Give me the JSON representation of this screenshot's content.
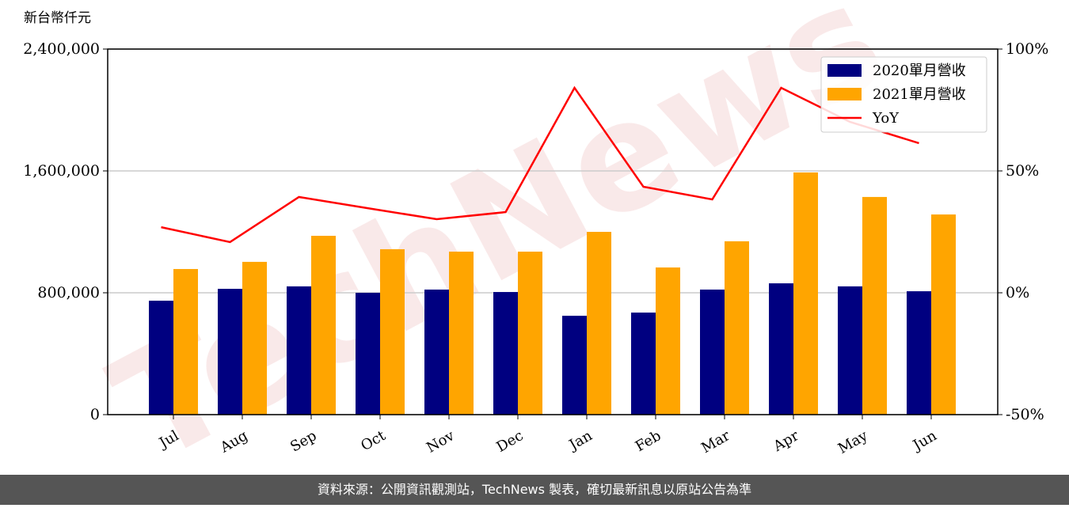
{
  "chart_data": {
    "type": "bar_line",
    "y_label": "新台幣仟元",
    "watermark": "TechNews",
    "footer": "資料來源：公開資訊觀測站，TechNews 製表，確切最新訊息以原站公告為準",
    "categories": [
      "Jul",
      "Aug",
      "Sep",
      "Oct",
      "Nov",
      "Dec",
      "Jan",
      "Feb",
      "Mar",
      "Apr",
      "May",
      "Jun"
    ],
    "series": [
      {
        "name": "2020單月營收",
        "color": "#000080",
        "values": [
          748000,
          826000,
          842000,
          800000,
          821000,
          805000,
          649000,
          670000,
          821000,
          862000,
          842000,
          810000
        ]
      },
      {
        "name": "2021單月營收",
        "color": "#ffa500",
        "values": [
          956000,
          1003000,
          1174000,
          1086000,
          1070000,
          1070000,
          1200000,
          966000,
          1138000,
          1590000,
          1429000,
          1314000
        ]
      },
      {
        "name": "YoY",
        "color": "#ff0000",
        "axis": "y2",
        "values": [
          26.9,
          20.8,
          39.3,
          34.7,
          30.2,
          33.1,
          84.1,
          43.5,
          38.3,
          84.1,
          70.1,
          61.4
        ]
      }
    ],
    "ylim": [
      0,
      2400000
    ],
    "yticks": [
      {
        "value": 0,
        "label": "0"
      },
      {
        "value": 800000,
        "label": "800,000"
      },
      {
        "value": 1600000,
        "label": "1,600,000"
      },
      {
        "value": 2400000,
        "label": "2,400,000"
      }
    ],
    "y2lim": [
      -50,
      100
    ],
    "y2ticks": [
      {
        "value": -50,
        "label": "-50%"
      },
      {
        "value": 0,
        "label": "0%"
      },
      {
        "value": 50,
        "label": "50%"
      },
      {
        "value": 100,
        "label": "100%"
      }
    ],
    "grid": true,
    "legend": "upper right"
  }
}
